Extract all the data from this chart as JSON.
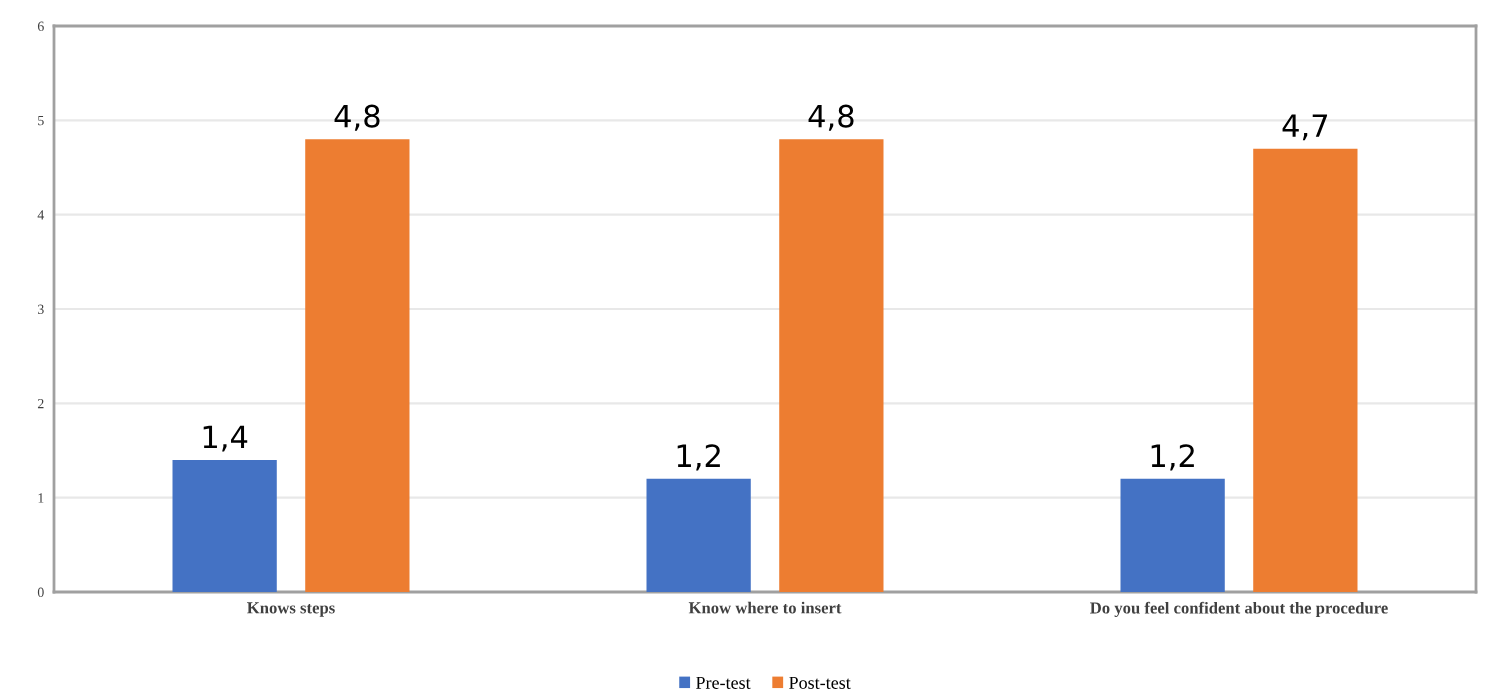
{
  "chart_data": {
    "type": "bar",
    "categories": [
      "Knows steps",
      "Know where to insert",
      "Do you feel confident about the procedure"
    ],
    "series": [
      {
        "name": "Pre-test",
        "color": "#4472c4",
        "values": [
          1.4,
          1.2,
          1.2
        ],
        "value_labels": [
          "1,4",
          "1,2",
          "1,2"
        ]
      },
      {
        "name": "Post-test",
        "color": "#ed7d31",
        "values": [
          4.8,
          4.8,
          4.7
        ],
        "value_labels": [
          "4,8",
          "4,8",
          "4,7"
        ]
      }
    ],
    "ylim": [
      0,
      6
    ],
    "yticks": [
      0,
      1,
      2,
      3,
      4,
      5,
      6
    ],
    "grid": "y",
    "legend": "bottom"
  }
}
